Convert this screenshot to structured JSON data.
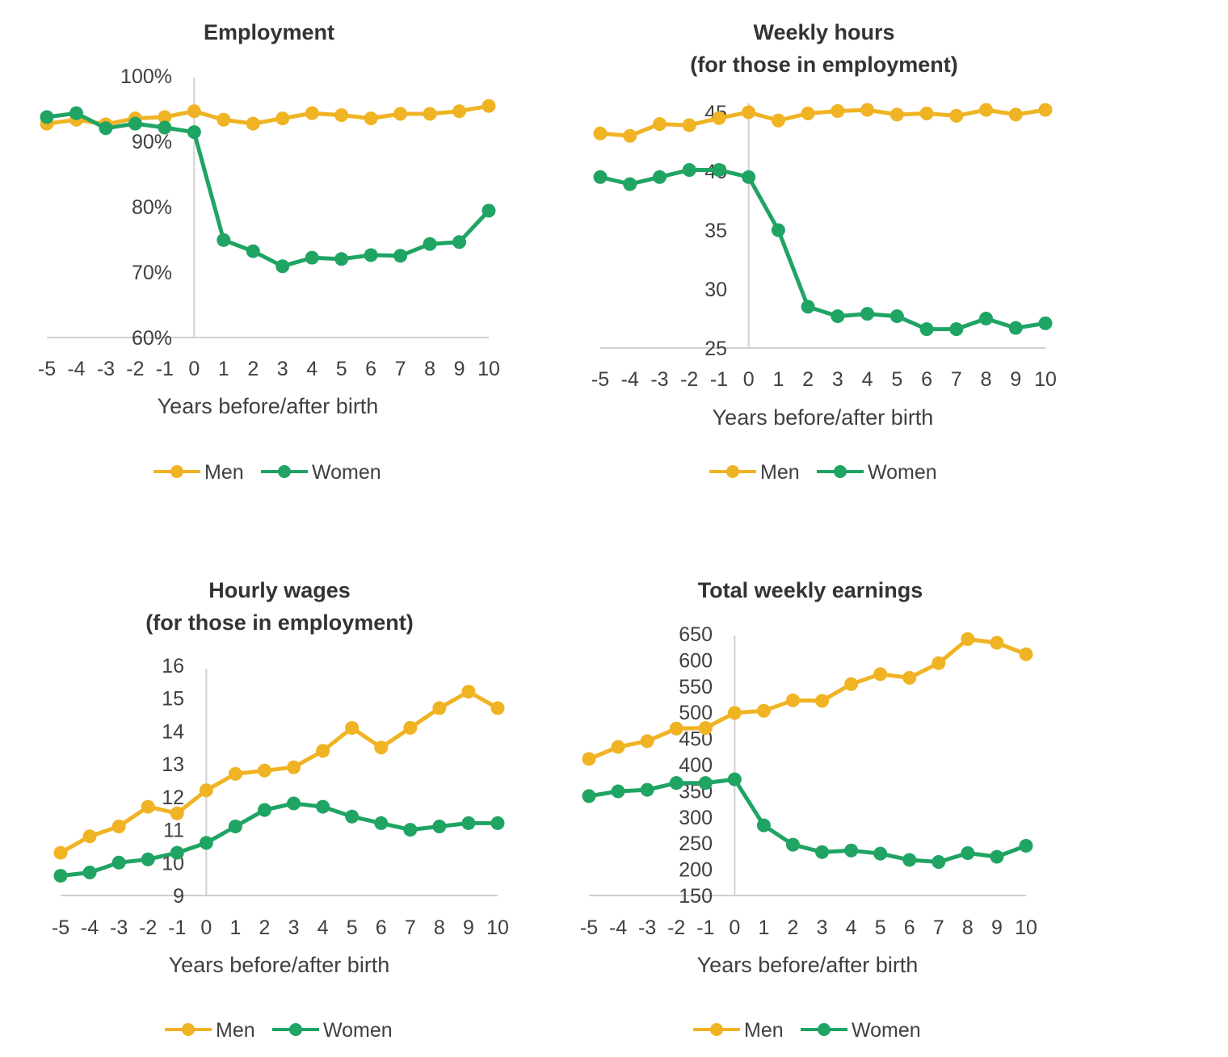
{
  "chart_data": [
    {
      "id": "employment",
      "type": "line",
      "title": [
        "Employment"
      ],
      "xlabel": "Years before/after birth",
      "ylabel": "",
      "x": [
        -5,
        -4,
        -3,
        -2,
        -1,
        0,
        1,
        2,
        3,
        4,
        5,
        6,
        7,
        8,
        9,
        10
      ],
      "x_tick_labels": [
        "-5",
        "-4",
        "-3",
        "-2",
        "-1",
        "0",
        "1",
        "2",
        "3",
        "4",
        "5",
        "6",
        "7",
        "8",
        "9",
        "10"
      ],
      "ylim": [
        60,
        100
      ],
      "y_ticks": [
        60,
        70,
        80,
        90,
        100
      ],
      "y_tick_labels": [
        "60%",
        "70%",
        "80%",
        "90%",
        "100%"
      ],
      "grid": false,
      "reference_line_x": 0,
      "legend_position": "bottom",
      "series": [
        {
          "name": "Men",
          "color": "#F0B323",
          "values": [
            92.7,
            93.3,
            92.6,
            93.5,
            93.7,
            94.6,
            93.3,
            92.7,
            93.5,
            94.3,
            94.0,
            93.5,
            94.2,
            94.2,
            94.6,
            95.4
          ]
        },
        {
          "name": "Women",
          "color": "#1FA463",
          "values": [
            93.7,
            94.3,
            92.0,
            92.7,
            92.1,
            91.4,
            74.9,
            73.2,
            70.9,
            72.2,
            72.0,
            72.6,
            72.5,
            74.3,
            74.6,
            79.4
          ]
        }
      ]
    },
    {
      "id": "weekly-hours",
      "type": "line",
      "title": [
        "Weekly hours",
        "(for those in employment)"
      ],
      "xlabel": "Years before/after birth",
      "ylabel": "",
      "x": [
        -5,
        -4,
        -3,
        -2,
        -1,
        0,
        1,
        2,
        3,
        4,
        5,
        6,
        7,
        8,
        9,
        10
      ],
      "x_tick_labels": [
        "-5",
        "-4",
        "-3",
        "-2",
        "-1",
        "0",
        "1",
        "2",
        "3",
        "4",
        "5",
        "6",
        "7",
        "8",
        "9",
        "10"
      ],
      "ylim": [
        25,
        45
      ],
      "y_ticks": [
        25,
        30,
        35,
        40,
        45
      ],
      "y_tick_labels": [
        "25",
        "30",
        "35",
        "40",
        "45"
      ],
      "grid": false,
      "reference_line_x": 0,
      "legend_position": "bottom",
      "series": [
        {
          "name": "Men",
          "color": "#F0B323",
          "values": [
            43.2,
            43.0,
            44.0,
            43.9,
            44.5,
            45.0,
            44.3,
            44.9,
            45.1,
            45.2,
            44.8,
            44.9,
            44.7,
            45.2,
            44.8,
            45.2
          ]
        },
        {
          "name": "Women",
          "color": "#1FA463",
          "values": [
            39.5,
            38.9,
            39.5,
            40.1,
            40.1,
            39.5,
            35.0,
            28.5,
            27.7,
            27.9,
            27.7,
            26.6,
            26.6,
            27.5,
            26.7,
            27.1
          ]
        }
      ]
    },
    {
      "id": "hourly-wages",
      "type": "line",
      "title": [
        "Hourly wages",
        "(for those in employment)"
      ],
      "xlabel": "Years before/after birth",
      "ylabel": "",
      "x": [
        -5,
        -4,
        -3,
        -2,
        -1,
        0,
        1,
        2,
        3,
        4,
        5,
        6,
        7,
        8,
        9,
        10
      ],
      "x_tick_labels": [
        "-5",
        "-4",
        "-3",
        "-2",
        "-1",
        "0",
        "1",
        "2",
        "3",
        "4",
        "5",
        "6",
        "7",
        "8",
        "9",
        "10"
      ],
      "ylim": [
        9,
        16
      ],
      "y_ticks": [
        9,
        10,
        11,
        12,
        13,
        14,
        15,
        16
      ],
      "y_tick_labels": [
        "9",
        "10",
        "11",
        "12",
        "13",
        "14",
        "15",
        "16"
      ],
      "grid": false,
      "reference_line_x": 0,
      "legend_position": "bottom",
      "series": [
        {
          "name": "Men",
          "color": "#F0B323",
          "values": [
            10.3,
            10.8,
            11.1,
            11.7,
            11.5,
            12.2,
            12.7,
            12.8,
            12.9,
            13.4,
            14.1,
            13.5,
            14.1,
            14.7,
            15.2,
            14.7
          ]
        },
        {
          "name": "Women",
          "color": "#1FA463",
          "values": [
            9.6,
            9.7,
            10.0,
            10.1,
            10.3,
            10.6,
            11.1,
            11.6,
            11.8,
            11.7,
            11.4,
            11.2,
            11.0,
            11.1,
            11.2,
            11.2
          ]
        }
      ]
    },
    {
      "id": "weekly-earnings",
      "type": "line",
      "title": [
        "Total weekly earnings"
      ],
      "xlabel": "Years before/after birth",
      "ylabel": "",
      "x": [
        -5,
        -4,
        -3,
        -2,
        -1,
        0,
        1,
        2,
        3,
        4,
        5,
        6,
        7,
        8,
        9,
        10
      ],
      "x_tick_labels": [
        "-5",
        "-4",
        "-3",
        "-2",
        "-1",
        "0",
        "1",
        "2",
        "3",
        "4",
        "5",
        "6",
        "7",
        "8",
        "9",
        "10"
      ],
      "ylim": [
        150,
        650
      ],
      "y_ticks": [
        150,
        200,
        250,
        300,
        350,
        400,
        450,
        500,
        550,
        600,
        650
      ],
      "y_tick_labels": [
        "150",
        "200",
        "250",
        "300",
        "350",
        "400",
        "450",
        "500",
        "550",
        "600",
        "650"
      ],
      "grid": false,
      "reference_line_x": 0,
      "legend_position": "bottom",
      "series": [
        {
          "name": "Men",
          "color": "#F0B323",
          "values": [
            411,
            434,
            445,
            469,
            470,
            499,
            503,
            523,
            522,
            554,
            573,
            566,
            594,
            640,
            633,
            611
          ]
        },
        {
          "name": "Women",
          "color": "#1FA463",
          "values": [
            340,
            349,
            352,
            365,
            365,
            372,
            284,
            247,
            233,
            236,
            230,
            218,
            214,
            231,
            224,
            245
          ]
        }
      ]
    }
  ]
}
